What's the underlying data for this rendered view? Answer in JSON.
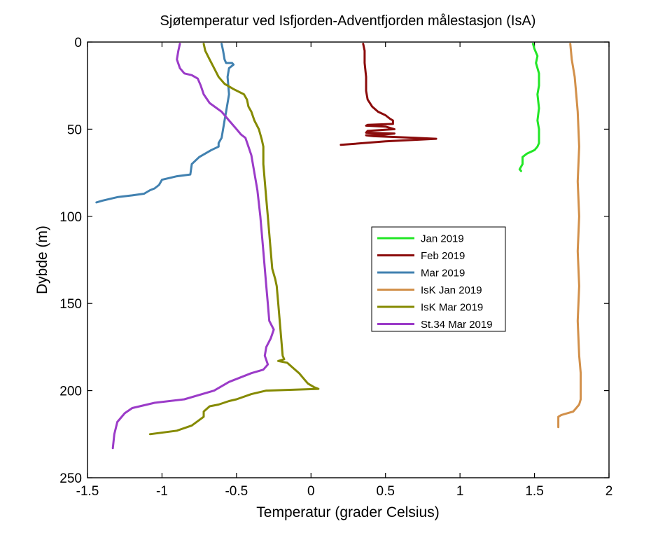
{
  "chart_data": {
    "type": "line",
    "title": "Sjøtemperatur ved Isfjorden-Adventfjorden målestasjon (IsA)",
    "xlabel": "Temperatur (grader Celsius)",
    "ylabel": "Dybde (m)",
    "xlim": [
      -1.5,
      2
    ],
    "ylim": [
      0,
      250
    ],
    "y_reversed": true,
    "x_ticks": [
      -1.5,
      -1,
      -0.5,
      0,
      0.5,
      1,
      1.5,
      2
    ],
    "x_tick_labels": [
      "-1.5",
      "-1",
      "-0.5",
      "0",
      "0.5",
      "1",
      "1.5",
      "2"
    ],
    "y_ticks": [
      0,
      50,
      100,
      150,
      200,
      250
    ],
    "y_tick_labels": [
      "0",
      "50",
      "100",
      "150",
      "200",
      "250"
    ],
    "grid": false,
    "legend_position": "center-right",
    "series": [
      {
        "name": "Jan 2019",
        "color": "#22e626",
        "points": [
          [
            1.49,
            1
          ],
          [
            1.5,
            4
          ],
          [
            1.52,
            8
          ],
          [
            1.51,
            12
          ],
          [
            1.53,
            18
          ],
          [
            1.53,
            25
          ],
          [
            1.52,
            30
          ],
          [
            1.53,
            38
          ],
          [
            1.52,
            45
          ],
          [
            1.53,
            50
          ],
          [
            1.53,
            55
          ],
          [
            1.53,
            58
          ],
          [
            1.52,
            60
          ],
          [
            1.5,
            62
          ],
          [
            1.45,
            64
          ],
          [
            1.42,
            66
          ],
          [
            1.42,
            70
          ],
          [
            1.4,
            73
          ],
          [
            1.41,
            74
          ]
        ]
      },
      {
        "name": "Feb 2019",
        "color": "#8b0b0b",
        "points": [
          [
            0.35,
            1
          ],
          [
            0.36,
            5
          ],
          [
            0.36,
            12
          ],
          [
            0.37,
            20
          ],
          [
            0.37,
            28
          ],
          [
            0.38,
            33
          ],
          [
            0.41,
            37
          ],
          [
            0.45,
            40
          ],
          [
            0.5,
            42
          ],
          [
            0.53,
            44
          ],
          [
            0.55,
            45
          ],
          [
            0.55,
            47
          ],
          [
            0.38,
            47.5
          ],
          [
            0.37,
            48
          ],
          [
            0.5,
            48.5
          ],
          [
            0.56,
            50
          ],
          [
            0.38,
            51
          ],
          [
            0.37,
            52
          ],
          [
            0.56,
            52.5
          ],
          [
            0.5,
            53
          ],
          [
            0.37,
            53.5
          ],
          [
            0.42,
            54
          ],
          [
            0.7,
            55
          ],
          [
            0.84,
            55.5
          ],
          [
            0.5,
            57
          ],
          [
            0.2,
            59
          ]
        ]
      },
      {
        "name": "Mar 2019",
        "color": "#4181b0",
        "points": [
          [
            -0.6,
            1
          ],
          [
            -0.59,
            5
          ],
          [
            -0.58,
            10
          ],
          [
            -0.57,
            12
          ],
          [
            -0.53,
            12
          ],
          [
            -0.52,
            13
          ],
          [
            -0.55,
            15
          ],
          [
            -0.56,
            20
          ],
          [
            -0.55,
            30
          ],
          [
            -0.57,
            40
          ],
          [
            -0.58,
            45
          ],
          [
            -0.59,
            50
          ],
          [
            -0.6,
            55
          ],
          [
            -0.62,
            58
          ],
          [
            -0.62,
            60
          ],
          [
            -0.67,
            62
          ],
          [
            -0.75,
            66
          ],
          [
            -0.8,
            70
          ],
          [
            -0.81,
            76
          ],
          [
            -0.9,
            77
          ],
          [
            -1.0,
            79
          ],
          [
            -1.02,
            82
          ],
          [
            -1.05,
            84
          ],
          [
            -1.08,
            85
          ],
          [
            -1.1,
            86
          ],
          [
            -1.12,
            87
          ],
          [
            -1.2,
            88
          ],
          [
            -1.3,
            89
          ],
          [
            -1.4,
            91
          ],
          [
            -1.44,
            92
          ]
        ]
      },
      {
        "name": "IsK Jan 2019",
        "color": "#d2904a",
        "points": [
          [
            1.74,
            1
          ],
          [
            1.75,
            10
          ],
          [
            1.77,
            20
          ],
          [
            1.78,
            30
          ],
          [
            1.79,
            40
          ],
          [
            1.8,
            60
          ],
          [
            1.79,
            80
          ],
          [
            1.8,
            100
          ],
          [
            1.79,
            120
          ],
          [
            1.8,
            140
          ],
          [
            1.79,
            160
          ],
          [
            1.8,
            180
          ],
          [
            1.81,
            190
          ],
          [
            1.81,
            200
          ],
          [
            1.81,
            205
          ],
          [
            1.8,
            208
          ],
          [
            1.78,
            210
          ],
          [
            1.76,
            212
          ],
          [
            1.72,
            213
          ],
          [
            1.68,
            214
          ],
          [
            1.66,
            215
          ],
          [
            1.66,
            218
          ],
          [
            1.66,
            221
          ]
        ]
      },
      {
        "name": "IsK Mar 2019",
        "color": "#858a00",
        "points": [
          [
            -0.72,
            1
          ],
          [
            -0.71,
            5
          ],
          [
            -0.68,
            10
          ],
          [
            -0.65,
            15
          ],
          [
            -0.62,
            20
          ],
          [
            -0.58,
            24
          ],
          [
            -0.52,
            27
          ],
          [
            -0.45,
            30
          ],
          [
            -0.43,
            33
          ],
          [
            -0.42,
            37
          ],
          [
            -0.4,
            40
          ],
          [
            -0.38,
            45
          ],
          [
            -0.35,
            50
          ],
          [
            -0.34,
            53
          ],
          [
            -0.33,
            56
          ],
          [
            -0.32,
            60
          ],
          [
            -0.32,
            70
          ],
          [
            -0.31,
            80
          ],
          [
            -0.3,
            90
          ],
          [
            -0.29,
            100
          ],
          [
            -0.28,
            110
          ],
          [
            -0.27,
            120
          ],
          [
            -0.26,
            130
          ],
          [
            -0.24,
            136
          ],
          [
            -0.23,
            140
          ],
          [
            -0.22,
            150
          ],
          [
            -0.21,
            160
          ],
          [
            -0.2,
            170
          ],
          [
            -0.19,
            180
          ],
          [
            -0.18,
            182
          ],
          [
            -0.22,
            183
          ],
          [
            -0.16,
            184
          ],
          [
            -0.12,
            187
          ],
          [
            -0.08,
            190
          ],
          [
            -0.05,
            193
          ],
          [
            -0.02,
            196
          ],
          [
            0.02,
            198
          ],
          [
            0.05,
            199
          ],
          [
            -0.3,
            200
          ],
          [
            -0.4,
            202
          ],
          [
            -0.5,
            205
          ],
          [
            -0.55,
            206
          ],
          [
            -0.62,
            208
          ],
          [
            -0.68,
            209
          ],
          [
            -0.72,
            212
          ],
          [
            -0.72,
            215
          ],
          [
            -0.8,
            220
          ],
          [
            -0.9,
            223
          ],
          [
            -1.08,
            225
          ]
        ]
      },
      {
        "name": "St.34 Mar 2019",
        "color": "#9b3bc8",
        "points": [
          [
            -0.88,
            1
          ],
          [
            -0.89,
            5
          ],
          [
            -0.9,
            10
          ],
          [
            -0.88,
            15
          ],
          [
            -0.85,
            18
          ],
          [
            -0.8,
            19
          ],
          [
            -0.76,
            21
          ],
          [
            -0.74,
            25
          ],
          [
            -0.72,
            30
          ],
          [
            -0.68,
            35
          ],
          [
            -0.6,
            40
          ],
          [
            -0.55,
            45
          ],
          [
            -0.5,
            50
          ],
          [
            -0.47,
            53
          ],
          [
            -0.44,
            55
          ],
          [
            -0.42,
            60
          ],
          [
            -0.4,
            65
          ],
          [
            -0.38,
            75
          ],
          [
            -0.36,
            85
          ],
          [
            -0.34,
            100
          ],
          [
            -0.32,
            120
          ],
          [
            -0.3,
            140
          ],
          [
            -0.29,
            150
          ],
          [
            -0.28,
            160
          ],
          [
            -0.25,
            165
          ],
          [
            -0.27,
            170
          ],
          [
            -0.3,
            175
          ],
          [
            -0.31,
            180
          ],
          [
            -0.29,
            185
          ],
          [
            -0.32,
            188
          ],
          [
            -0.4,
            190
          ],
          [
            -0.55,
            195
          ],
          [
            -0.65,
            200
          ],
          [
            -0.85,
            205
          ],
          [
            -1.05,
            207
          ],
          [
            -1.2,
            210
          ],
          [
            -1.25,
            213
          ],
          [
            -1.3,
            218
          ],
          [
            -1.32,
            225
          ],
          [
            -1.33,
            233
          ]
        ]
      }
    ]
  }
}
